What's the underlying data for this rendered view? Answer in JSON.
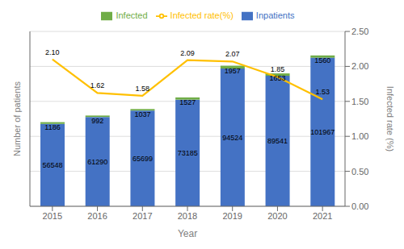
{
  "chart_data": {
    "type": "bar",
    "stacked": true,
    "categories": [
      "2015",
      "2016",
      "2017",
      "2018",
      "2019",
      "2020",
      "2021"
    ],
    "xlabel": "Year",
    "ylabel": "Number of patients",
    "y2label": "Infected rate (%)",
    "ylim": [
      0,
      120000
    ],
    "y2lim": [
      0.0,
      2.5
    ],
    "y2ticks": [
      {
        "value": 0.0,
        "label": "0.00"
      },
      {
        "value": 0.5,
        "label": "0.50"
      },
      {
        "value": 1.0,
        "label": "1.00"
      },
      {
        "value": 1.5,
        "label": "1.50"
      },
      {
        "value": 2.0,
        "label": "2.00"
      },
      {
        "value": 2.5,
        "label": "2.50"
      }
    ],
    "grid": true,
    "legend": "top",
    "data_labels": true,
    "series": [
      {
        "name": "Inpatients",
        "color": "#4472C4",
        "values": [
          56548,
          61290,
          65699,
          73185,
          94524,
          89541,
          101967
        ]
      },
      {
        "name": "Infected",
        "color": "#70AD47",
        "values": [
          1186,
          992,
          1037,
          1527,
          1957,
          1653,
          1560
        ]
      },
      {
        "name": "Infected rate(%)",
        "type": "line",
        "axis": "y2",
        "color": "#FFC000",
        "values": [
          2.1,
          1.62,
          1.58,
          2.09,
          2.07,
          1.85,
          1.53
        ],
        "value_labels": [
          "2.10",
          "1.62",
          "1.58",
          "2.09",
          "2.07",
          "1.85",
          "1.53"
        ]
      }
    ]
  }
}
